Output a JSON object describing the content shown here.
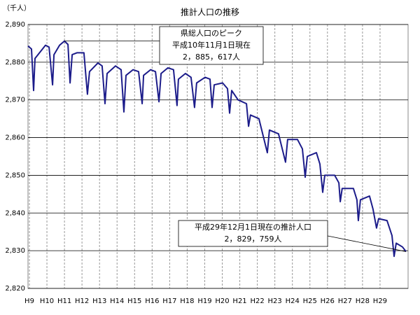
{
  "chart_data": {
    "type": "line",
    "title": "推計人口の推移",
    "y_unit_label": "（千人）",
    "annotations": [
      {
        "lines": [
          "県総人口のピーク",
          "平成10年11月1日現在",
          "2，885，617人"
        ]
      },
      {
        "lines": [
          "平成29年12月1日現在の推計人口",
          "2，829，759人"
        ]
      }
    ],
    "xlim": [
      8.92,
      30.6
    ],
    "xticks": [
      {
        "value": 9,
        "label": "H9"
      },
      {
        "value": 10,
        "label": "H10"
      },
      {
        "value": 11,
        "label": "H11"
      },
      {
        "value": 12,
        "label": "H12"
      },
      {
        "value": 13,
        "label": "H13"
      },
      {
        "value": 14,
        "label": "H14"
      },
      {
        "value": 15,
        "label": "H15"
      },
      {
        "value": 16,
        "label": "H16"
      },
      {
        "value": 17,
        "label": "H17"
      },
      {
        "value": 18,
        "label": "H18"
      },
      {
        "value": 19,
        "label": "H19"
      },
      {
        "value": 20,
        "label": "H20"
      },
      {
        "value": 21,
        "label": "H21"
      },
      {
        "value": 22,
        "label": "H22"
      },
      {
        "value": 23,
        "label": "H23"
      },
      {
        "value": 24,
        "label": "H24"
      },
      {
        "value": 25,
        "label": "H25"
      },
      {
        "value": 26,
        "label": "H26"
      },
      {
        "value": 27,
        "label": "H27"
      },
      {
        "value": 28,
        "label": "H28"
      },
      {
        "value": 29,
        "label": "H29"
      }
    ],
    "ylim": [
      2820,
      2890
    ],
    "yticks": [
      {
        "value": 2820,
        "label": "2,820"
      },
      {
        "value": 2830,
        "label": "2,830"
      },
      {
        "value": 2840,
        "label": "2,840"
      },
      {
        "value": 2850,
        "label": "2,850"
      },
      {
        "value": 2860,
        "label": "2,860"
      },
      {
        "value": 2870,
        "label": "2,870"
      },
      {
        "value": 2880,
        "label": "2,880"
      },
      {
        "value": 2890,
        "label": "2,890"
      }
    ],
    "grid": true,
    "series": [
      {
        "name": "推計人口",
        "color": "#1c1c8a",
        "x": [
          8.92,
          9.12,
          9.24,
          9.32,
          9.92,
          10.12,
          10.32,
          10.4,
          10.72,
          11.0,
          11.2,
          11.32,
          11.44,
          11.71,
          12.11,
          12.31,
          12.43,
          12.91,
          13.15,
          13.31,
          13.43,
          13.91,
          14.23,
          14.39,
          14.51,
          14.91,
          15.23,
          15.43,
          15.51,
          15.91,
          16.19,
          16.39,
          16.51,
          16.9,
          17.22,
          17.42,
          17.5,
          17.9,
          18.22,
          18.42,
          18.54,
          19.02,
          19.3,
          19.42,
          19.54,
          20.02,
          20.3,
          20.42,
          20.54,
          20.9,
          21.38,
          21.5,
          21.61,
          22.09,
          22.57,
          22.69,
          23.21,
          23.61,
          23.73,
          24.29,
          24.57,
          24.73,
          24.85,
          25.37,
          25.57,
          25.73,
          25.85,
          26.41,
          26.65,
          26.73,
          26.84,
          27.48,
          27.68,
          27.76,
          27.88,
          28.4,
          28.6,
          28.8,
          28.92,
          29.4,
          29.68,
          29.8,
          29.92,
          30.28,
          30.48
        ],
        "values": [
          2884.3,
          2883.5,
          2872.5,
          2881,
          2884.5,
          2884,
          2874,
          2882,
          2884.5,
          2885.617,
          2884.7,
          2874.5,
          2882,
          2882.5,
          2882.5,
          2871.5,
          2877.5,
          2879.8,
          2879,
          2869,
          2877,
          2879,
          2878,
          2866.8,
          2876.5,
          2878,
          2877.5,
          2869,
          2876.5,
          2878,
          2877.5,
          2869.5,
          2877,
          2878.5,
          2878,
          2868.5,
          2875.5,
          2877,
          2876,
          2868,
          2874.5,
          2876,
          2875.5,
          2868,
          2874,
          2874.5,
          2873,
          2866.5,
          2872.5,
          2870,
          2869,
          2863,
          2866,
          2865,
          2856,
          2862,
          2861,
          2853.5,
          2859.5,
          2859.5,
          2857,
          2849.5,
          2855,
          2856,
          2853,
          2845.5,
          2850,
          2850,
          2848,
          2843,
          2846.5,
          2846.5,
          2843.5,
          2838,
          2843.5,
          2844.5,
          2841,
          2836,
          2838.5,
          2838,
          2834,
          2828.5,
          2832,
          2831,
          2829.759
        ]
      }
    ]
  }
}
